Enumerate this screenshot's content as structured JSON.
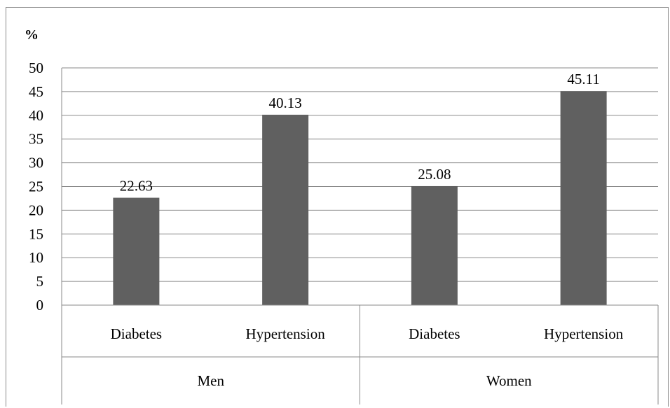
{
  "chart_data": {
    "type": "bar",
    "ylabel": "%",
    "ylim": [
      0,
      50
    ],
    "yticks": [
      "0",
      "5",
      "10",
      "15",
      "20",
      "25",
      "30",
      "35",
      "40",
      "45",
      "50"
    ],
    "grid": true,
    "groups": [
      {
        "label": "Men",
        "categories": [
          "Diabetes",
          "Hypertension"
        ],
        "values": [
          22.63,
          40.13
        ],
        "value_labels": [
          "22.63",
          "40.13"
        ]
      },
      {
        "label": "Women",
        "categories": [
          "Diabetes",
          "Hypertension"
        ],
        "values": [
          25.08,
          45.11
        ],
        "value_labels": [
          "25.08",
          "45.11"
        ]
      }
    ],
    "bar_color": "#606060"
  }
}
